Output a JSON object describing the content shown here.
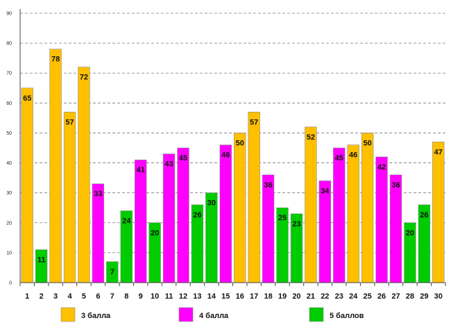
{
  "chart_data": {
    "type": "bar",
    "title": "",
    "xlabel": "",
    "ylabel": "",
    "ylim": [
      0,
      90
    ],
    "yticks": [
      0,
      10,
      20,
      30,
      40,
      50,
      60,
      70,
      80,
      90
    ],
    "categories": [
      "1",
      "2",
      "3",
      "4",
      "5",
      "6",
      "7",
      "8",
      "9",
      "10",
      "11",
      "12",
      "13",
      "14",
      "15",
      "16",
      "17",
      "18",
      "19",
      "20",
      "21",
      "22",
      "23",
      "24",
      "25",
      "26",
      "27",
      "28",
      "29",
      "30"
    ],
    "values": [
      65,
      11,
      78,
      57,
      72,
      33,
      7,
      24,
      41,
      20,
      43,
      45,
      26,
      30,
      46,
      50,
      57,
      36,
      25,
      23,
      52,
      34,
      45,
      46,
      50,
      42,
      36,
      20,
      26,
      47
    ],
    "groups": [
      "3",
      "5",
      "3",
      "3",
      "3",
      "4",
      "5",
      "5",
      "4",
      "5",
      "4",
      "4",
      "5",
      "5",
      "4",
      "3",
      "3",
      "4",
      "5",
      "5",
      "3",
      "4",
      "4",
      "3",
      "3",
      "4",
      "4",
      "5",
      "5",
      "3"
    ],
    "legend": [
      {
        "key": "3",
        "name": "3 балла",
        "color": "#FFC000"
      },
      {
        "key": "4",
        "name": "4 балла",
        "color": "#FF00FF"
      },
      {
        "key": "5",
        "name": "5 баллов",
        "color": "#00CC00"
      }
    ],
    "grid": true,
    "legend_position": "bottom"
  }
}
